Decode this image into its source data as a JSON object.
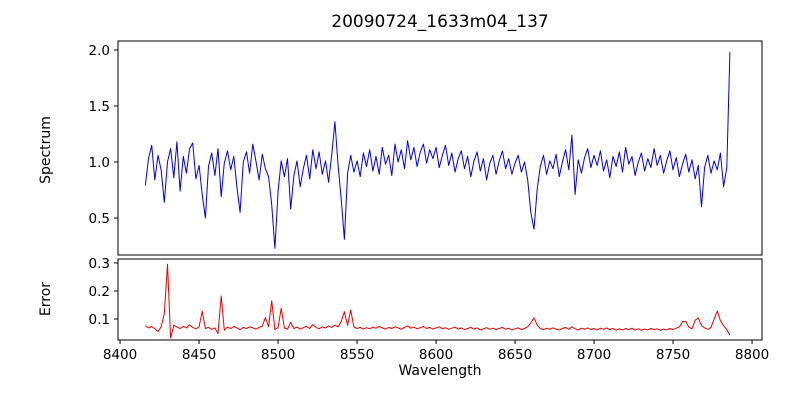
{
  "title": "20090724_1633m04_137",
  "colors": {
    "spectrum_line": "#0000ee",
    "error_line": "#ee0000",
    "axis": "#000000"
  },
  "chart_data": {
    "type": "line",
    "title": "20090724_1633m04_137",
    "xlabel": "Wavelength",
    "grid": false,
    "legend": "none",
    "xlim": [
      8398.7,
      8806.3
    ],
    "x_ticks": [
      8400,
      8450,
      8500,
      8550,
      8600,
      8650,
      8700,
      8750,
      8800
    ],
    "x_start": 8416,
    "x_step": 2,
    "panels": [
      {
        "name": "spectrum",
        "ylabel": "Spectrum",
        "color": "#0000ee",
        "ylim": [
          0.17,
          2.08
        ],
        "y_ticks": [
          0.5,
          1.0,
          1.5,
          2.0
        ],
        "values": [
          0.79,
          1.03,
          1.15,
          0.84,
          1.06,
          0.93,
          0.64,
          1.0,
          1.12,
          0.86,
          1.18,
          0.74,
          1.05,
          0.9,
          1.12,
          1.17,
          0.85,
          0.97,
          0.71,
          0.5,
          0.96,
          1.08,
          0.88,
          1.12,
          0.69,
          0.99,
          1.1,
          0.93,
          1.05,
          0.77,
          0.55,
          1.0,
          1.09,
          0.9,
          1.16,
          1.01,
          0.84,
          1.07,
          0.94,
          0.87,
          0.62,
          0.23,
          0.74,
          1.01,
          0.87,
          1.03,
          0.58,
          0.88,
          1.01,
          0.78,
          0.94,
          1.06,
          0.85,
          1.11,
          0.94,
          1.09,
          0.89,
          1.01,
          0.82,
          1.07,
          1.36,
          0.97,
          0.66,
          0.31,
          0.9,
          1.06,
          0.91,
          1.01,
          0.87,
          1.08,
          0.96,
          1.11,
          0.92,
          1.05,
          0.89,
          1.13,
          0.98,
          1.06,
          0.88,
          1.16,
          1.0,
          1.11,
          0.94,
          1.19,
          1.02,
          1.13,
          0.96,
          1.09,
          1.16,
          0.99,
          1.11,
          1.03,
          1.13,
          0.95,
          1.06,
          1.15,
          0.97,
          1.08,
          0.91,
          1.03,
          1.1,
          0.94,
          1.05,
          0.87,
          1.01,
          1.09,
          0.92,
          1.03,
          0.84,
          0.99,
          1.06,
          0.89,
          1.01,
          1.1,
          0.94,
          1.03,
          0.89,
          0.99,
          1.06,
          0.91,
          1.0,
          0.84,
          0.55,
          0.4,
          0.76,
          0.96,
          1.06,
          0.89,
          1.01,
          0.94,
          1.07,
          0.87,
          1.0,
          1.11,
          0.93,
          1.24,
          0.71,
          1.02,
          0.9,
          1.04,
          1.12,
          0.95,
          1.06,
          0.97,
          1.1,
          0.92,
          1.02,
          0.86,
          1.05,
          0.96,
          1.09,
          0.91,
          1.13,
          0.98,
          1.05,
          0.88,
          1.0,
          1.08,
          0.92,
          1.03,
          0.95,
          1.12,
          0.97,
          1.06,
          0.9,
          1.01,
          1.1,
          0.93,
          1.04,
          0.87,
          0.98,
          1.07,
          0.91,
          1.02,
          0.85,
          0.97,
          0.6,
          0.95,
          1.06,
          0.9,
          1.01,
          0.93,
          1.08,
          0.78,
          0.95,
          1.98
        ]
      },
      {
        "name": "error",
        "ylabel": "Error",
        "color": "#ee0000",
        "ylim": [
          0.025,
          0.314
        ],
        "y_ticks": [
          0.1,
          0.2,
          0.3
        ],
        "values": [
          0.076,
          0.068,
          0.073,
          0.065,
          0.055,
          0.072,
          0.118,
          0.295,
          0.032,
          0.078,
          0.071,
          0.066,
          0.074,
          0.068,
          0.079,
          0.07,
          0.065,
          0.072,
          0.128,
          0.066,
          0.07,
          0.063,
          0.068,
          0.048,
          0.182,
          0.06,
          0.071,
          0.066,
          0.073,
          0.068,
          0.062,
          0.07,
          0.066,
          0.072,
          0.068,
          0.064,
          0.07,
          0.075,
          0.105,
          0.072,
          0.165,
          0.062,
          0.07,
          0.138,
          0.068,
          0.064,
          0.088,
          0.066,
          0.071,
          0.064,
          0.069,
          0.074,
          0.066,
          0.08,
          0.07,
          0.065,
          0.072,
          0.068,
          0.075,
          0.07,
          0.078,
          0.072,
          0.092,
          0.126,
          0.077,
          0.132,
          0.072,
          0.066,
          0.07,
          0.064,
          0.069,
          0.065,
          0.071,
          0.067,
          0.073,
          0.068,
          0.064,
          0.07,
          0.066,
          0.072,
          0.068,
          0.063,
          0.07,
          0.075,
          0.067,
          0.071,
          0.065,
          0.069,
          0.073,
          0.066,
          0.07,
          0.064,
          0.068,
          0.072,
          0.065,
          0.069,
          0.063,
          0.067,
          0.071,
          0.064,
          0.068,
          0.062,
          0.066,
          0.07,
          0.064,
          0.068,
          0.061,
          0.065,
          0.069,
          0.063,
          0.067,
          0.062,
          0.066,
          0.07,
          0.063,
          0.067,
          0.061,
          0.065,
          0.068,
          0.062,
          0.066,
          0.072,
          0.086,
          0.104,
          0.078,
          0.066,
          0.062,
          0.067,
          0.063,
          0.068,
          0.064,
          0.061,
          0.066,
          0.07,
          0.063,
          0.072,
          0.065,
          0.061,
          0.067,
          0.063,
          0.068,
          0.062,
          0.066,
          0.061,
          0.067,
          0.063,
          0.068,
          0.062,
          0.066,
          0.06,
          0.065,
          0.061,
          0.066,
          0.062,
          0.067,
          0.061,
          0.065,
          0.06,
          0.064,
          0.061,
          0.066,
          0.062,
          0.065,
          0.06,
          0.064,
          0.061,
          0.066,
          0.062,
          0.067,
          0.072,
          0.09,
          0.092,
          0.071,
          0.065,
          0.096,
          0.104,
          0.076,
          0.068,
          0.063,
          0.07,
          0.1,
          0.128,
          0.094,
          0.076,
          0.062,
          0.042
        ]
      }
    ]
  }
}
